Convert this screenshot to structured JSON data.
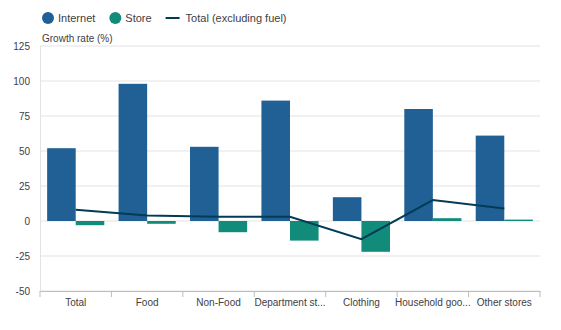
{
  "chart_data": {
    "type": "bar",
    "y_label": "Growth rate (%)",
    "categories": [
      "Total",
      "Food",
      "Non-Food",
      "Department st...",
      "Clothing",
      "Household goo...",
      "Other stores"
    ],
    "series": [
      {
        "name": "Internet",
        "type": "bar",
        "color": "#206095",
        "values": [
          52,
          98,
          53,
          86,
          17,
          80,
          61
        ]
      },
      {
        "name": "Store",
        "type": "bar",
        "color": "#118c7b",
        "values": [
          -3,
          -2,
          -8,
          -14,
          -22,
          2,
          1
        ]
      },
      {
        "name": "Total (excluding fuel)",
        "type": "line",
        "color": "#003c57",
        "values": [
          8,
          4,
          3,
          3,
          -13,
          15,
          9
        ]
      }
    ],
    "ylim": [
      -50,
      125
    ],
    "yticks": [
      -50,
      -25,
      0,
      25,
      50,
      75,
      100,
      125
    ],
    "grid": true,
    "legend": "top"
  }
}
